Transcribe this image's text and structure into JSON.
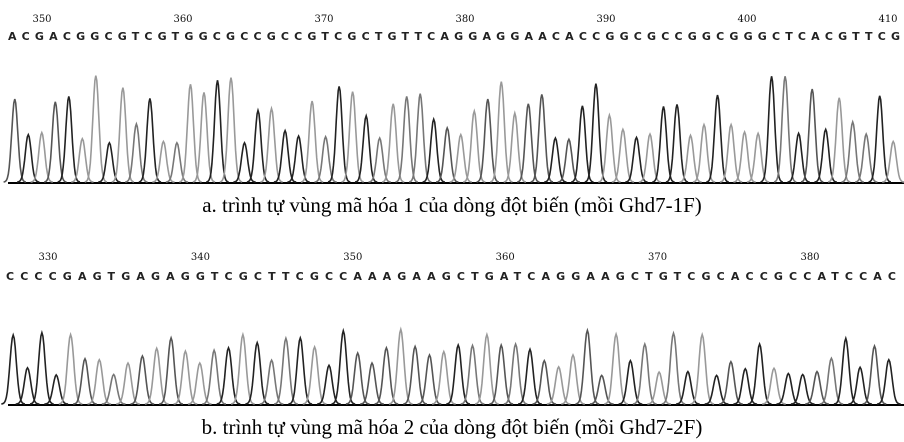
{
  "panels": [
    {
      "positions": [
        350,
        360,
        370,
        380,
        390,
        400,
        410
      ],
      "sequence": "ACGACGGCGTCGTGGCGCCGCCGTCGCTGTTCAGGAGGAACACCGGCGCCGGCGGGCTCACGTTCG",
      "caption": "a. trình tự vùng mã hóa 1 của dòng đột biến (mồi Ghd7-1F)"
    },
    {
      "positions": [
        330,
        340,
        350,
        360,
        370,
        380
      ],
      "sequence": "CCCCGAGTGAGAGGTCGCTTCGCCAAAGAAGCTGATCAGGAAGCTGTCGCACCGCCATCCAC",
      "caption": "b. trình tự vùng mã hóa 2 của dòng đột biến (mồi Ghd7-2F)"
    }
  ]
}
